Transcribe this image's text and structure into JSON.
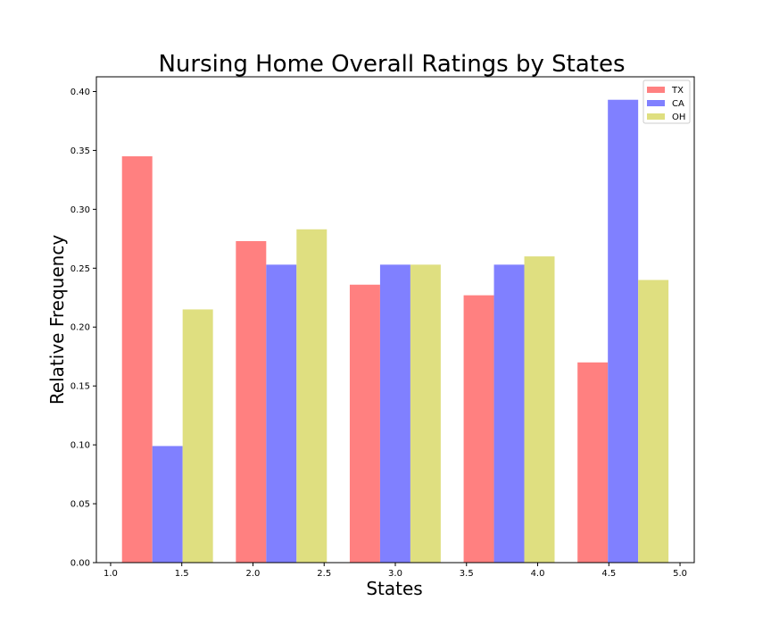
{
  "chart_data": {
    "type": "bar",
    "title": "Nursing Home Overall Ratings by States",
    "xlabel": "States",
    "ylabel": "Relative Frequency",
    "xlim": [
      0.9,
      5.1
    ],
    "ylim": [
      0,
      0.4125
    ],
    "xticks": [
      "1.0",
      "1.5",
      "2.0",
      "2.5",
      "3.0",
      "3.5",
      "4.0",
      "4.5",
      "5.0"
    ],
    "xtick_values": [
      1.0,
      1.5,
      2.0,
      2.5,
      3.0,
      3.5,
      4.0,
      4.5,
      5.0
    ],
    "yticks": [
      "0.00",
      "0.05",
      "0.10",
      "0.15",
      "0.20",
      "0.25",
      "0.30",
      "0.35",
      "0.40"
    ],
    "ytick_values": [
      0.0,
      0.05,
      0.1,
      0.15,
      0.2,
      0.25,
      0.3,
      0.35,
      0.4
    ],
    "bin_starts": [
      1.08,
      1.88,
      2.68,
      3.48,
      4.28
    ],
    "bar_width": 0.213,
    "grid": false,
    "legend_position": "top-right",
    "series": [
      {
        "name": "TX",
        "color": "#ff8080",
        "values": [
          0.345,
          0.273,
          0.236,
          0.227,
          0.17
        ]
      },
      {
        "name": "CA",
        "color": "#8080ff",
        "values": [
          0.099,
          0.253,
          0.253,
          0.253,
          0.393
        ]
      },
      {
        "name": "OH",
        "color": "#dfdf80",
        "values": [
          0.215,
          0.283,
          0.253,
          0.26,
          0.24
        ]
      }
    ]
  }
}
